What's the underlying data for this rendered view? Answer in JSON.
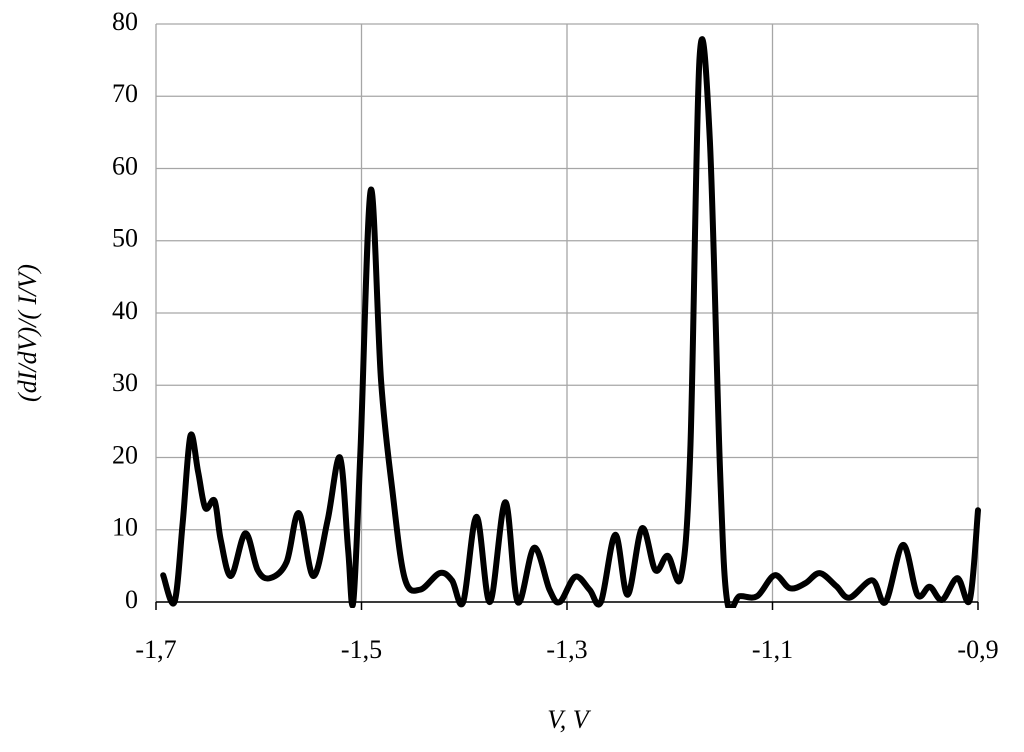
{
  "chart_data": {
    "type": "line",
    "x_label": "V, V",
    "y_label": "(dI/dV)/( I/V)",
    "x": [
      -1.693,
      -1.682,
      -1.674,
      -1.6665,
      -1.659,
      -1.652,
      -1.643,
      -1.637,
      -1.627,
      -1.613,
      -1.601,
      -1.589,
      -1.573,
      -1.561,
      -1.547,
      -1.533,
      -1.521,
      -1.513,
      -1.508,
      -1.501,
      -1.491,
      -1.481,
      -1.47,
      -1.458,
      -1.443,
      -1.424,
      -1.412,
      -1.401,
      -1.388,
      -1.375,
      -1.36,
      -1.348,
      -1.332,
      -1.317,
      -1.307,
      -1.292,
      -1.278,
      -1.267,
      -1.253,
      -1.241,
      -1.227,
      -1.214,
      -1.202,
      -1.189,
      -1.18,
      -1.171,
      -1.161,
      -1.151,
      -1.144,
      -1.132,
      -1.115,
      -1.098,
      -1.083,
      -1.068,
      -1.054,
      -1.038,
      -1.025,
      -1.003,
      -0.99,
      -0.973,
      -0.959,
      -0.947,
      -0.935,
      -0.92,
      -0.908,
      -0.9
    ],
    "values": [
      3.7,
      0,
      11,
      23,
      18,
      13,
      14,
      8.6,
      3.6,
      9.5,
      4.4,
      3.3,
      5.5,
      12.3,
      3.6,
      11.3,
      20,
      7.2,
      0,
      21,
      57,
      30.7,
      15.5,
      3.3,
      1.7,
      4,
      3,
      0,
      11.8,
      0,
      13.8,
      0,
      7.5,
      1.7,
      0,
      3.5,
      1.7,
      0,
      9.3,
      1,
      10.2,
      4.4,
      6.4,
      3.5,
      21,
      75.3,
      64,
      18,
      0,
      0.8,
      0.8,
      3.7,
      1.9,
      2.6,
      4,
      2.2,
      0.6,
      3,
      0,
      7.9,
      1,
      2.1,
      0.3,
      3.3,
      0.3,
      12.7
    ],
    "color": "#000000",
    "xlim": [
      -1.7,
      -0.9
    ],
    "xticks": [
      {
        "value": -1.7,
        "label": "-1,7"
      },
      {
        "value": -1.5,
        "label": "-1,5"
      },
      {
        "value": -1.3,
        "label": "-1,3"
      },
      {
        "value": -1.1,
        "label": "-1,1"
      },
      {
        "value": -0.9,
        "label": "-0,9"
      }
    ],
    "ylim": [
      0,
      80
    ],
    "yticks": [
      0,
      10,
      20,
      30,
      40,
      50,
      60,
      70,
      80
    ],
    "grid": true
  }
}
